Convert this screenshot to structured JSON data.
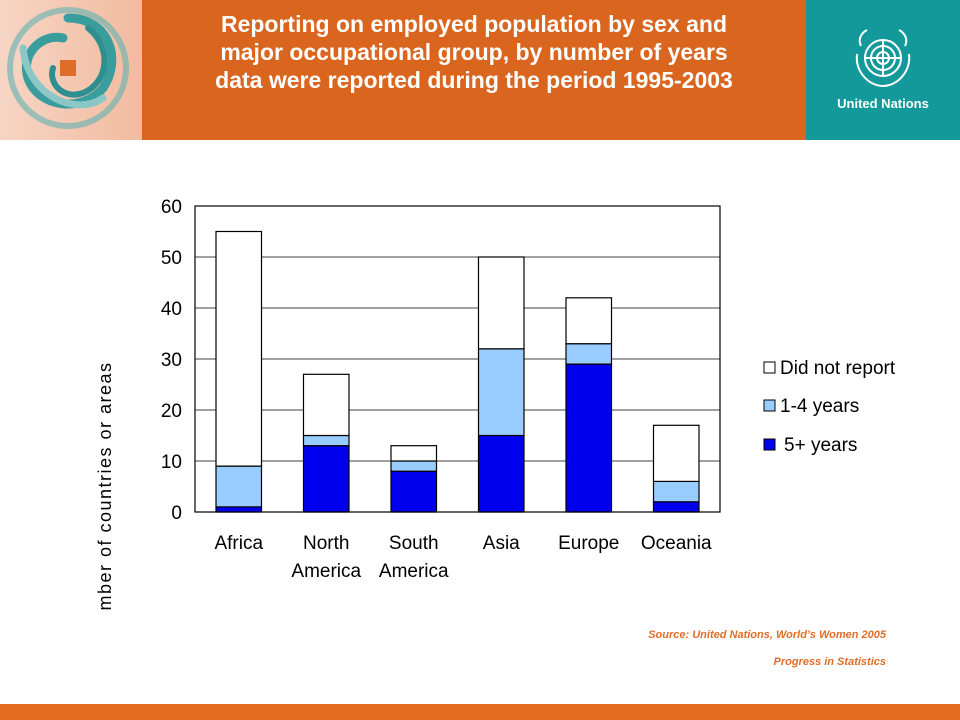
{
  "header": {
    "title": "Reporting on employed population by sex and\nmajor occupational group, by number of years\ndata were reported during the period 1995-2003",
    "org_name": "United Nations",
    "left_logo_icon": "spiral-logo-icon",
    "un_emblem_icon": "un-emblem-icon"
  },
  "colors": {
    "header_orange": "#d9651f",
    "un_teal": "#14999a",
    "five_plus": "#0000ee",
    "one_to_four": "#99ccff",
    "did_not_report": "#ffffff"
  },
  "chart_data": {
    "type": "bar",
    "stacked": true,
    "categories": [
      "Africa",
      "North\nAmerica",
      "South\nAmerica",
      "Asia",
      "Europe",
      "Oceania"
    ],
    "series": [
      {
        "name": "5+ years",
        "values": [
          1,
          13,
          8,
          15,
          29,
          2
        ]
      },
      {
        "name": "1-4 years",
        "values": [
          8,
          2,
          2,
          17,
          4,
          4
        ]
      },
      {
        "name": "Did not report",
        "values": [
          46,
          12,
          3,
          18,
          9,
          11
        ]
      }
    ],
    "ylabel": "Number of countries or areas",
    "ylim": [
      0,
      60
    ],
    "yticks": [
      "0",
      "10",
      "20",
      "30",
      "40",
      "50",
      "60"
    ],
    "grid": true,
    "legend_order": [
      "Did not report",
      "1-4 years",
      "5+ years"
    ],
    "legend_placement": "right"
  },
  "source": {
    "line1": "Source: United Nations,  World’s Women 2005",
    "line2": "Progress in Statistics"
  }
}
